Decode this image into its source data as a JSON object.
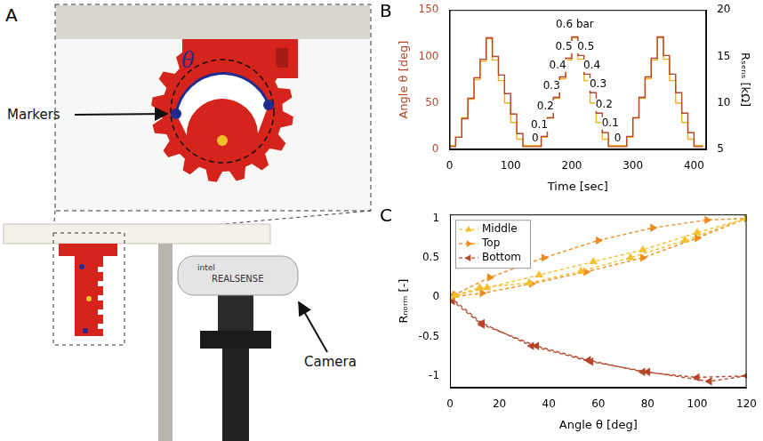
{
  "diagram": {
    "panel": "A",
    "markers_label": "Markers",
    "angle_symbol": "θ",
    "camera_label": "Camera",
    "camera_brand": "intel",
    "camera_model": "REALSENSE"
  },
  "chart_data": [
    {
      "panel": "B",
      "type": "line",
      "x_label": "Time [sec]",
      "y_label": "Angle θ [deg]",
      "y2_label": "Rₛₑₙₛ [kΩ]",
      "x": [
        0,
        10,
        20,
        30,
        40,
        50,
        60,
        70,
        80,
        90,
        100,
        110,
        120,
        150,
        160,
        170,
        180,
        190,
        200,
        210,
        220,
        230,
        240,
        250,
        260,
        290,
        300,
        310,
        320,
        330,
        340,
        350,
        360,
        370,
        380,
        390,
        400,
        415
      ],
      "series": [
        {
          "color": "#b5462a",
          "line_style": "steps",
          "values": [
            3,
            13,
            33,
            55,
            77,
            97,
            120,
            100,
            80,
            60,
            38,
            17,
            3,
            14,
            34,
            56,
            78,
            98,
            121,
            101,
            81,
            61,
            39,
            18,
            3,
            14,
            34,
            56,
            78,
            98,
            121,
            101,
            81,
            61,
            39,
            18,
            3,
            3
          ]
        },
        {
          "color": "#f2b01e",
          "line_style": "steps",
          "axis": "y2",
          "values": [
            5.4,
            6.3,
            8.4,
            10.4,
            12.5,
            14.5,
            16.9,
            14.6,
            12.4,
            10.0,
            7.9,
            6.1,
            5.4,
            6.3,
            8.4,
            10.5,
            12.6,
            14.6,
            17.0,
            14.7,
            12.4,
            10.0,
            7.9,
            6.1,
            5.4,
            6.3,
            8.4,
            10.5,
            12.6,
            14.6,
            17.0,
            14.7,
            12.4,
            10.0,
            7.9,
            6.1,
            5.4,
            5.4
          ]
        }
      ],
      "xlim": [
        0,
        420
      ],
      "xticks": [
        0,
        100,
        200,
        300,
        400
      ],
      "ylim": [
        0,
        150
      ],
      "yticks": [
        0,
        50,
        100,
        150
      ],
      "y2lim": [
        5,
        20
      ],
      "y2ticks": [
        5,
        10,
        15,
        20
      ],
      "grid": false,
      "annotations": [
        {
          "text": "0",
          "x": 140,
          "y": 12
        },
        {
          "text": "0.1",
          "x": 147,
          "y": 26
        },
        {
          "text": "0.2",
          "x": 157,
          "y": 46
        },
        {
          "text": "0.3",
          "x": 167,
          "y": 68
        },
        {
          "text": "0.4",
          "x": 177,
          "y": 90
        },
        {
          "text": "0.5",
          "x": 187,
          "y": 110
        },
        {
          "text": "0.6 bar",
          "x": 205,
          "y": 134
        },
        {
          "text": "0.5",
          "x": 223,
          "y": 110
        },
        {
          "text": "0.4",
          "x": 233,
          "y": 90
        },
        {
          "text": "0.3",
          "x": 243,
          "y": 70
        },
        {
          "text": "0.2",
          "x": 253,
          "y": 48
        },
        {
          "text": "0.1",
          "x": 263,
          "y": 28
        },
        {
          "text": "0",
          "x": 275,
          "y": 12
        }
      ]
    },
    {
      "panel": "C",
      "type": "line",
      "x_label": "Angle θ [deg]",
      "y_label": "Rₙₒᵣₘ [-]",
      "series": [
        {
          "name": "Middle",
          "color": "#f2c12e",
          "marker": "triangle-up",
          "line_style": "dashed",
          "x": [
            0,
            12,
            32,
            53,
            73,
            95,
            120,
            100,
            78,
            58,
            36,
            15,
            2
          ],
          "values": [
            0,
            0.12,
            0.18,
            0.33,
            0.5,
            0.72,
            1,
            0.82,
            0.6,
            0.45,
            0.28,
            0.12,
            0.02
          ]
        },
        {
          "name": "Top",
          "color": "#f08a1c",
          "marker": "triangle-right",
          "line_style": "dashed",
          "x": [
            0,
            13,
            33,
            55,
            78,
            100,
            120,
            104,
            82,
            60,
            38,
            16,
            2
          ],
          "values": [
            0,
            0.05,
            0.17,
            0.32,
            0.5,
            0.75,
            1,
            0.98,
            0.88,
            0.72,
            0.5,
            0.25,
            0.03
          ]
        },
        {
          "name": "Bottom",
          "color": "#b5462a",
          "marker": "triangle-left",
          "line_style": "dashed",
          "x": [
            0,
            13,
            33,
            57,
            80,
            105,
            120,
            100,
            78,
            56,
            35,
            13,
            1
          ],
          "values": [
            0,
            -0.33,
            -0.62,
            -0.82,
            -0.95,
            -1.07,
            -1,
            -1.02,
            -0.95,
            -0.8,
            -0.62,
            -0.35,
            -0.05
          ]
        }
      ],
      "xlim": [
        0,
        120
      ],
      "xticks": [
        0,
        20,
        40,
        60,
        80,
        100,
        120
      ],
      "ylim": [
        -1.15,
        1.05
      ],
      "yticks": [
        -1,
        -0.5,
        0,
        0.5,
        1
      ],
      "grid": false,
      "legend": "upper left"
    }
  ]
}
